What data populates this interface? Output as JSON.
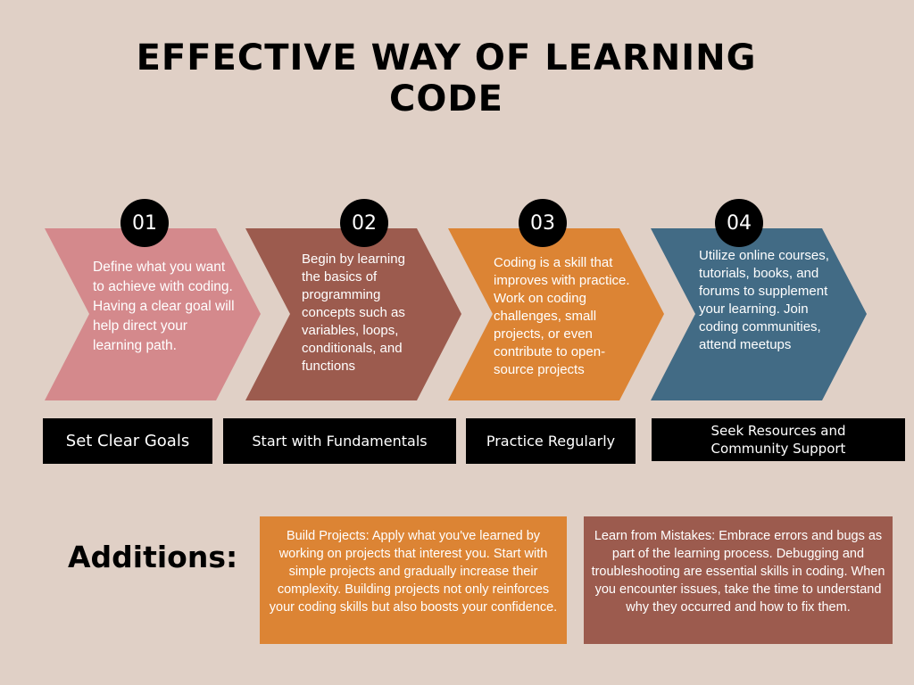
{
  "title": "EFFECTIVE WAY OF LEARNING CODE",
  "steps": [
    {
      "number": "01",
      "description": " Define what you want to achieve with coding. Having a clear goal will help direct your learning path.",
      "label": "Set Clear Goals",
      "color": "#d4898c"
    },
    {
      "number": "02",
      "description": "Begin by learning the basics of programming concepts such as variables, loops, conditionals, and functions",
      "label": "Start with Fundamentals",
      "color": "#9c5b4e"
    },
    {
      "number": "03",
      "description": " Coding is a skill that improves with practice. Work on coding challenges, small projects, or even contribute to open-source projects",
      "label": "Practice Regularly",
      "color": "#dc8434"
    },
    {
      "number": "04",
      "description": "Utilize online courses, tutorials, books, and forums to supplement your learning. Join coding communities, attend meetups",
      "label": "Seek Resources and Community Support",
      "color": "#426b85"
    }
  ],
  "additions": {
    "heading": "Additions:",
    "items": [
      {
        "text": "Build Projects: Apply what you've learned by working on projects that interest you. Start with simple projects and gradually increase their complexity. Building projects not only reinforces your coding skills but also boosts your confidence.",
        "color": "#dc8434"
      },
      {
        "text": "Learn from Mistakes: Embrace errors and bugs as part of the learning process. Debugging and troubleshooting are essential skills in coding. When you encounter issues, take the time to understand why they occurred and how to fix them.",
        "color": "#9c5b4e"
      }
    ]
  },
  "background_color": "#e0d0c6"
}
